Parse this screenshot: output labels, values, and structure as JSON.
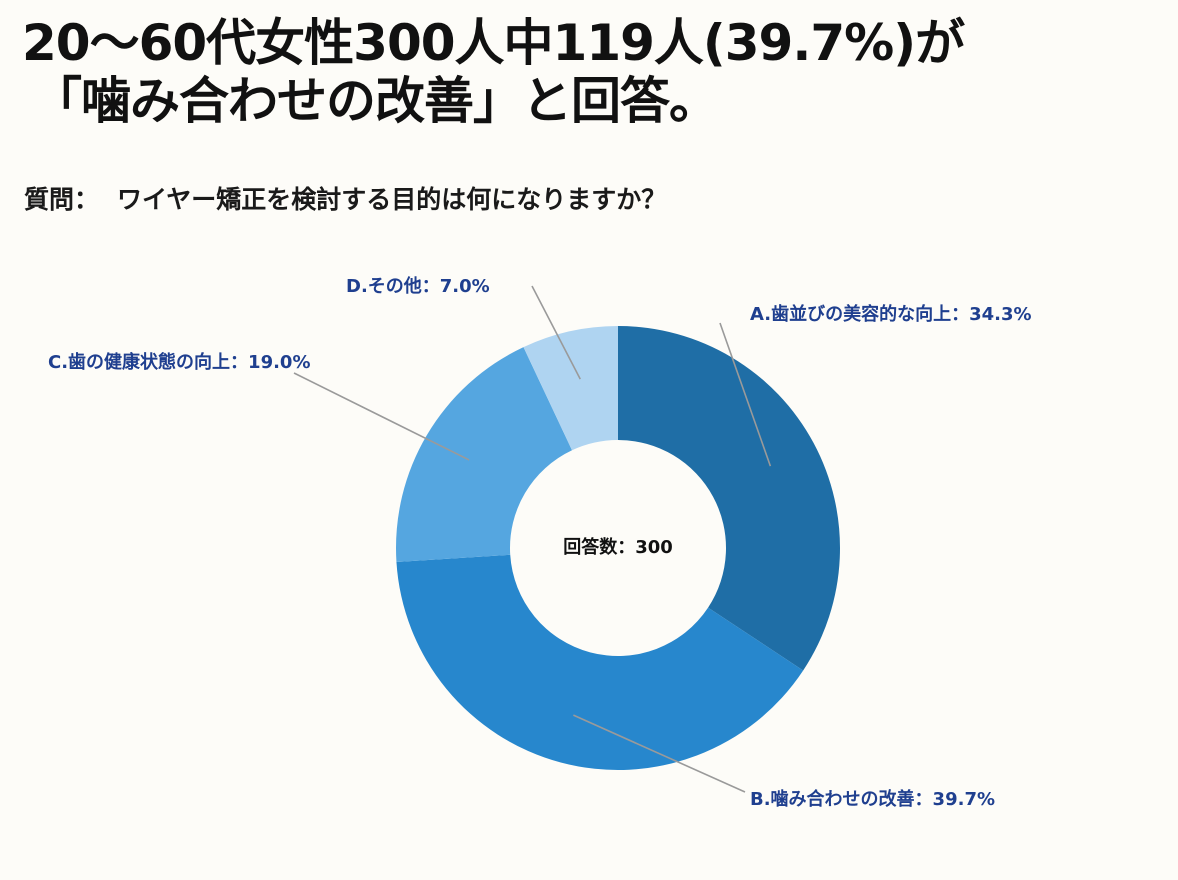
{
  "header": {
    "title_line1": "20〜60代女性300人中119人(39.7%)が",
    "title_line2": "「噛み合わせの改善」と回答。"
  },
  "question": {
    "prefix": "質問：",
    "text": "ワイヤー矯正を検討する目的は何になりますか？"
  },
  "chart_data": {
    "type": "pie",
    "donut": true,
    "center_label": "回答数：300",
    "slices": [
      {
        "label": "A.歯並びの美容的な向上：34.3%",
        "name": "A.歯並びの美容的な向上",
        "value": 34.3,
        "color": "#1f6ea6"
      },
      {
        "label": "B.噛み合わせの改善：39.7%",
        "name": "B.噛み合わせの改善",
        "value": 39.7,
        "color": "#2787cd"
      },
      {
        "label": "C.歯の健康状態の向上：19.0%",
        "name": "C.歯の健康状態の向上",
        "value": 19.0,
        "color": "#55a6e0"
      },
      {
        "label": "D.その他：7.0%",
        "name": "D.その他",
        "value": 7.0,
        "color": "#afd4f1"
      }
    ]
  }
}
